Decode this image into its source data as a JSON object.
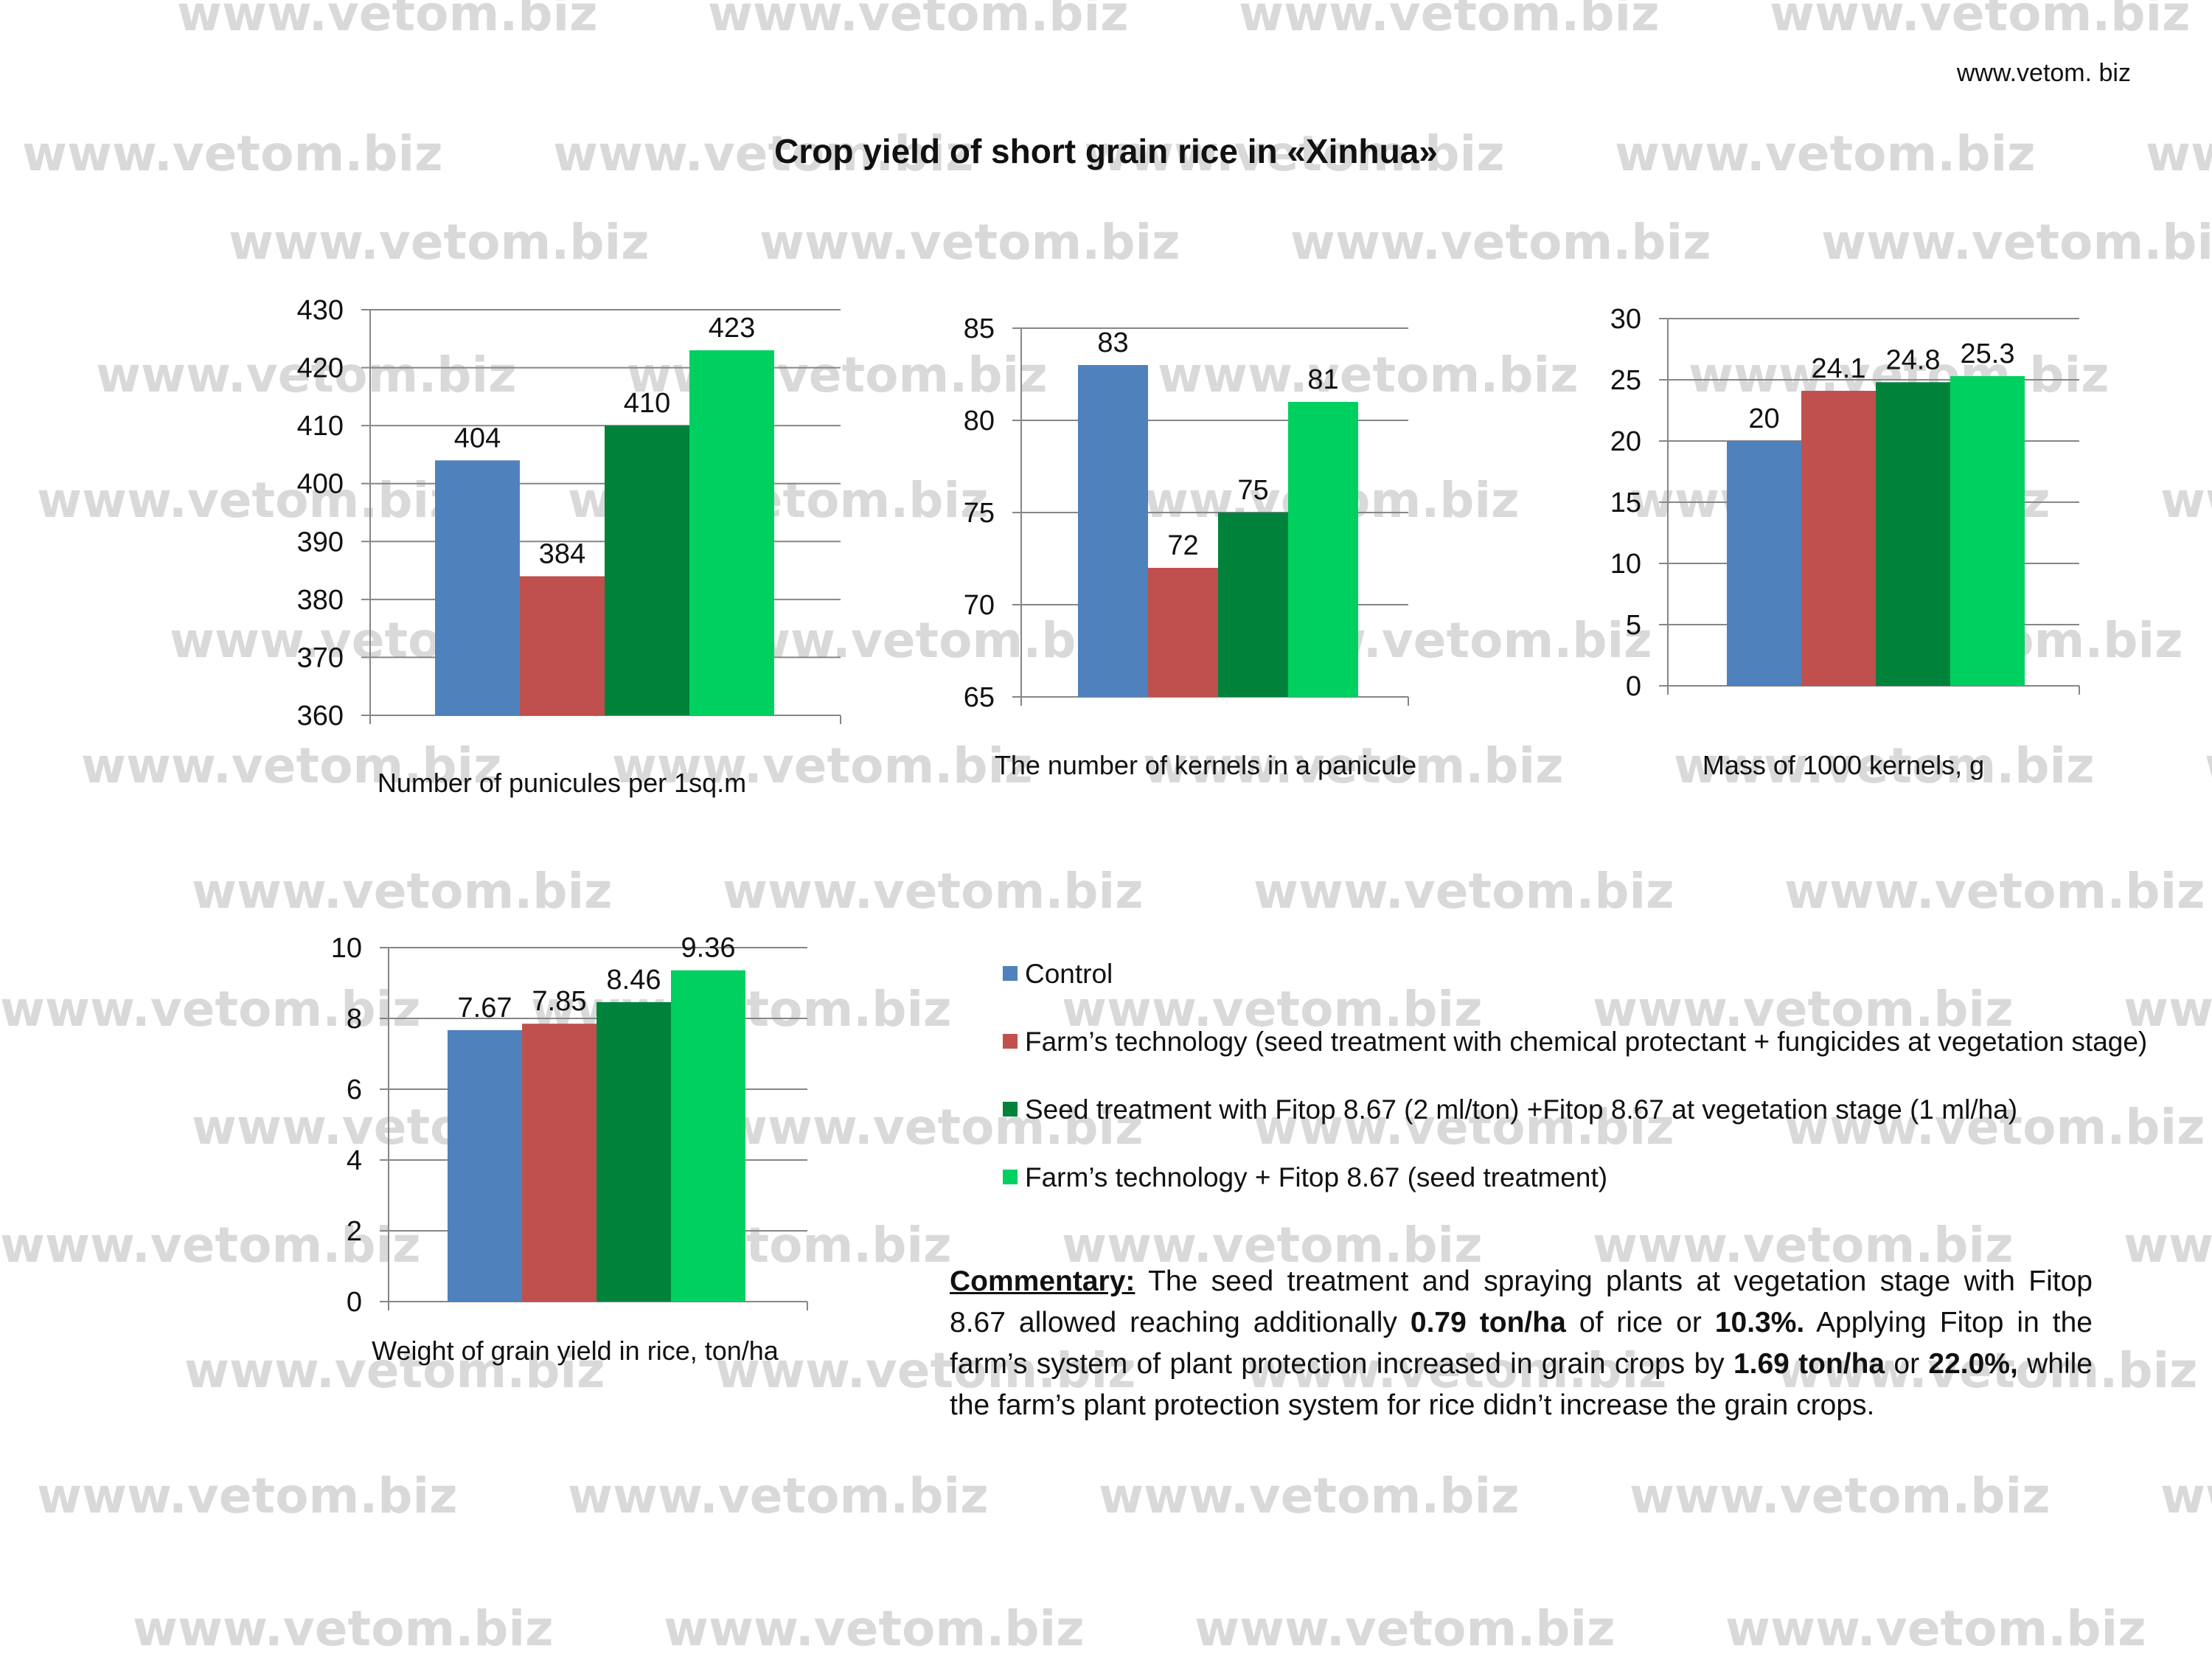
{
  "site_url": "www.vetom. biz",
  "title": "Crop yield of short grain rice in «Xinhua»",
  "watermark_text": "www.vetom.biz",
  "series": [
    {
      "name": "Control",
      "color": "#4f81bd"
    },
    {
      "name": "Farm’s technology (seed treatment with chemical protectant + fungicides  at vegetation stage)",
      "color": "#c0504d"
    },
    {
      "name": "Seed treatment with Fitop 8.67 (2 ml/ton) +Fitop 8.67 at vegetation stage (1 ml/ha)",
      "color": "#00823b"
    },
    {
      "name": "Farm’s technology + Fitop 8.67 (seed treatment)",
      "color": "#00d060"
    }
  ],
  "chart_data": [
    {
      "type": "bar",
      "title": "",
      "xlabel": "Number of punicules per 1sq.m",
      "ylabel": "",
      "ylim": [
        360,
        430
      ],
      "yticks": [
        360,
        370,
        380,
        390,
        400,
        410,
        420,
        430
      ],
      "values": [
        404,
        384,
        410,
        423
      ],
      "value_labels": [
        "404",
        "384",
        "410",
        "423"
      ],
      "grid": true
    },
    {
      "type": "bar",
      "title": "",
      "xlabel": "The number of kernels in a panicule",
      "ylabel": "",
      "ylim": [
        65,
        85
      ],
      "yticks": [
        65,
        70,
        75,
        80,
        85
      ],
      "values": [
        83,
        72,
        75,
        81
      ],
      "value_labels": [
        "83",
        "72",
        "75",
        "81"
      ],
      "grid": true
    },
    {
      "type": "bar",
      "title": "",
      "xlabel": "Mass of 1000 kernels, g",
      "ylabel": "",
      "ylim": [
        0,
        30
      ],
      "yticks": [
        0,
        5,
        10,
        15,
        20,
        25,
        30
      ],
      "values": [
        20,
        24.1,
        24.8,
        25.3
      ],
      "value_labels": [
        "20",
        "24.1",
        "24.8",
        "25.3"
      ],
      "grid": true
    },
    {
      "type": "bar",
      "title": "",
      "xlabel": "Weight of grain yield in rice, ton/ha",
      "ylabel": "",
      "ylim": [
        0,
        10
      ],
      "yticks": [
        0,
        2,
        4,
        6,
        8,
        10
      ],
      "values": [
        7.67,
        7.85,
        8.46,
        9.36
      ],
      "value_labels": [
        "7.67",
        "7.85",
        "8.46",
        "9.36"
      ],
      "grid": true
    }
  ],
  "commentary": {
    "label": "Commentary:",
    "t1": " The seed treatment and spraying plants at vegetation stage with Fitop 8.67 allowed reaching additionally ",
    "b1": "0.79 ton/ha",
    "t2": " of rice or ",
    "b2": "10.3%.",
    "t3": "  Applying Fitop in the farm’s system of plant protection increased in grain crops by ",
    "b3": "1.69 ton/ha",
    "t4": " or ",
    "b4": "22.0%,",
    "t5": " while the farm’s plant protection system  for rice didn’t increase the grain crops."
  }
}
